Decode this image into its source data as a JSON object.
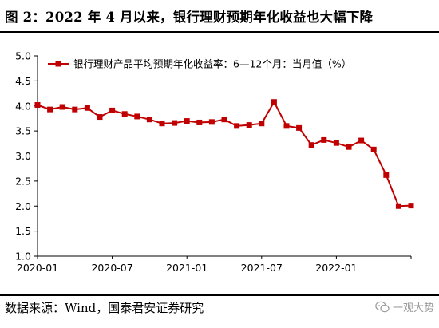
{
  "figure": {
    "title": "图 2：2022 年 4 月以来，银行理财预期年化收益也大幅下降",
    "source": "数据来源：Wind，国泰君安证券研究",
    "watermark": "一观大势"
  },
  "chart_data": {
    "type": "line",
    "title": "",
    "xlabel": "",
    "ylabel": "",
    "ylim": [
      1.0,
      5.0
    ],
    "y_ticks": [
      1.0,
      1.5,
      2.0,
      2.5,
      3.0,
      3.5,
      4.0,
      4.5,
      5.0
    ],
    "x": [
      "2020-01",
      "2020-02",
      "2020-03",
      "2020-04",
      "2020-05",
      "2020-06",
      "2020-07",
      "2020-08",
      "2020-09",
      "2020-10",
      "2020-11",
      "2020-12",
      "2021-01",
      "2021-02",
      "2021-03",
      "2021-04",
      "2021-05",
      "2021-06",
      "2021-07",
      "2021-08",
      "2021-09",
      "2021-10",
      "2021-11",
      "2021-12",
      "2022-01",
      "2022-02",
      "2022-03",
      "2022-04",
      "2022-05",
      "2022-06",
      "2022-07"
    ],
    "x_tick_labels": [
      "2020-01",
      "2020-07",
      "2021-01",
      "2021-07",
      "2022-01"
    ],
    "legend_position": "top",
    "grid": false,
    "series": [
      {
        "name": "银行理财产品平均预期年化收益率：6—12个月：当月值（%）",
        "color": "#c00000",
        "marker": "square",
        "values": [
          4.02,
          3.93,
          3.98,
          3.93,
          3.96,
          3.78,
          3.91,
          3.84,
          3.79,
          3.73,
          3.65,
          3.66,
          3.7,
          3.67,
          3.68,
          3.73,
          3.6,
          3.62,
          3.65,
          4.08,
          3.6,
          3.56,
          3.22,
          3.32,
          3.26,
          3.18,
          3.31,
          3.13,
          2.62,
          2.0,
          2.01
        ]
      }
    ]
  }
}
